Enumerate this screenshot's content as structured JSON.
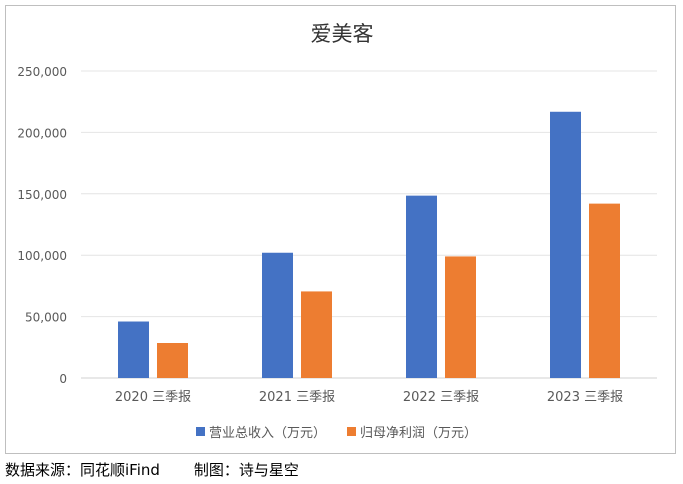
{
  "chart_data": {
    "type": "bar",
    "title": "爱美客",
    "categories": [
      "2020 三季报",
      "2021 三季报",
      "2022 三季报",
      "2023 三季报"
    ],
    "series": [
      {
        "name": "营业总收入（万元）",
        "color": "#4472c4",
        "values": [
          46000,
          102000,
          148500,
          216800
        ]
      },
      {
        "name": "归母净利润（万元）",
        "color": "#ed7d31",
        "values": [
          28500,
          70500,
          99000,
          142000
        ]
      }
    ],
    "yticks": [
      "0",
      "50,000",
      "100,000",
      "150,000",
      "200,000",
      "250,000"
    ],
    "ylim": [
      0,
      250000
    ],
    "grid": true,
    "legend": "bottom"
  },
  "footer": {
    "source": "数据来源：同花顺iFind",
    "author": "制图：诗与星空"
  }
}
